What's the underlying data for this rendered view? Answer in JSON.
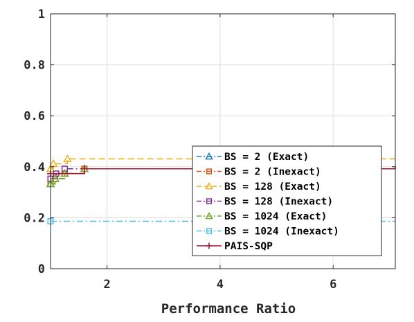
{
  "chart_data": {
    "type": "line",
    "step": true,
    "xlabel": "Performance Ratio",
    "ylabel": "",
    "xlim": [
      1,
      7.1
    ],
    "ylim": [
      0,
      1
    ],
    "xticks": [
      2,
      4,
      6
    ],
    "xtick_labels": [
      "2",
      "4",
      "6"
    ],
    "yticks": [
      0,
      0.2,
      0.4,
      0.6,
      0.8,
      1
    ],
    "ytick_labels": [
      "0",
      "0.2",
      "0.4",
      "0.6",
      "0.8",
      "1"
    ],
    "grid": true,
    "legend_position": "bottom-right",
    "series": [
      {
        "name": "BS = 2 (Exact)",
        "color": "#1f77b4",
        "marker": "triangle",
        "dash": "dashdot",
        "x": [
          1.0,
          1.08,
          1.25,
          1.6,
          7.1
        ],
        "y": [
          0.333,
          0.353,
          0.373,
          0.392,
          0.392
        ]
      },
      {
        "name": "BS = 2 (Inexact)",
        "color": "#d95319",
        "marker": "square",
        "dash": "dashdot",
        "x": [
          1.0,
          1.08,
          1.25,
          1.6,
          7.1
        ],
        "y": [
          0.333,
          0.353,
          0.373,
          0.392,
          0.392
        ]
      },
      {
        "name": "BS = 128 (Exact)",
        "color": "#edb120",
        "marker": "triangle",
        "dash": "dashed",
        "x": [
          1.0,
          1.05,
          1.3,
          7.1
        ],
        "y": [
          0.392,
          0.412,
          0.431,
          0.431
        ]
      },
      {
        "name": "BS = 128 (Inexact)",
        "color": "#7e2f8e",
        "marker": "square",
        "dash": "dashdot",
        "x": [
          1.0,
          1.1,
          1.25,
          6.5,
          7.1
        ],
        "y": [
          0.353,
          0.373,
          0.392,
          0.392,
          0.392
        ]
      },
      {
        "name": "BS = 1024 (Exact)",
        "color": "#77ac30",
        "marker": "triangle",
        "dash": "dashdot",
        "x": [
          1.0,
          1.08,
          1.25,
          1.6,
          7.1
        ],
        "y": [
          0.333,
          0.353,
          0.373,
          0.392,
          0.392
        ]
      },
      {
        "name": "BS = 1024 (Inexact)",
        "color": "#4dbeee",
        "marker": "square",
        "dash": "dashdot",
        "x": [
          1.0,
          7.1
        ],
        "y": [
          0.186,
          0.186
        ]
      },
      {
        "name": "PAIS-SQP",
        "color": "#a2142f",
        "marker": "plus",
        "dash": "solid",
        "x": [
          1.0,
          1.6,
          6.5,
          7.1
        ],
        "y": [
          0.373,
          0.392,
          0.392,
          0.402
        ]
      }
    ]
  }
}
